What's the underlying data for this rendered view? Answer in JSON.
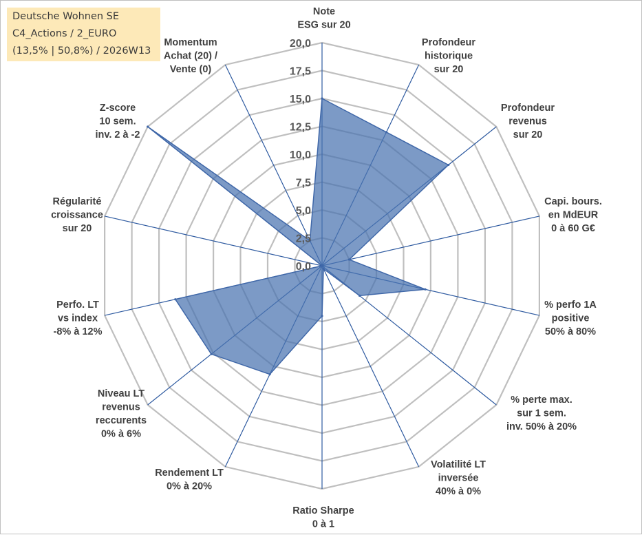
{
  "header": {
    "line1": "Deutsche Wohnen SE",
    "line2": "C4_Actions / 2_EURO",
    "line3": "(13,5% | 50,8%) / 2026W13"
  },
  "chart_data": {
    "type": "radar",
    "r_min": 0,
    "r_max": 20,
    "ticks": [
      0,
      2.5,
      5,
      7.5,
      10,
      12.5,
      15,
      17.5,
      20
    ],
    "tick_labels": [
      "0,0",
      "2,5",
      "5,0",
      "7,5",
      "10,0",
      "12,5",
      "15,0",
      "17,5",
      "20,0"
    ],
    "axes": [
      [
        "Note",
        "ESG sur 20"
      ],
      [
        "Profondeur",
        "historique",
        "sur 20"
      ],
      [
        "Profondeur",
        "revenus",
        "sur 20"
      ],
      [
        "Capi. bours.",
        "en MdEUR",
        "0 à 60 G€"
      ],
      [
        "% perfo 1A",
        "positive",
        "50% à 80%"
      ],
      [
        "% perte max.",
        "sur 1 sem.",
        "inv. 50% à 20%"
      ],
      [
        "Volatilité LT",
        "inversée",
        "40% à 0%"
      ],
      [
        "Ratio Sharpe",
        "0 à 1"
      ],
      [
        "Rendement LT",
        "0% à 20%"
      ],
      [
        "Niveau LT",
        "revenus",
        "reccurents",
        "0% à 6%"
      ],
      [
        "Perfo. LT",
        "vs index",
        "-8% à 12%"
      ],
      [
        "Régularité",
        "croissance",
        "sur 20"
      ],
      [
        "Z-score",
        "10 sem.",
        "inv. 2 à -2"
      ],
      [
        "Momentum",
        "Achat (20) /",
        "Vente (0)"
      ]
    ],
    "series": [
      {
        "name": "Deutsche Wohnen SE",
        "values": [
          15.0,
          13.3,
          14.5,
          2.5,
          9.5,
          4.3,
          0.3,
          4.5,
          10.8,
          12.7,
          13.5,
          0.0,
          20.0,
          2.5
        ],
        "color": "#4a73b0"
      }
    ],
    "grid_color": "#bfbfbf",
    "axis_line_color": "#2e5aa0"
  }
}
